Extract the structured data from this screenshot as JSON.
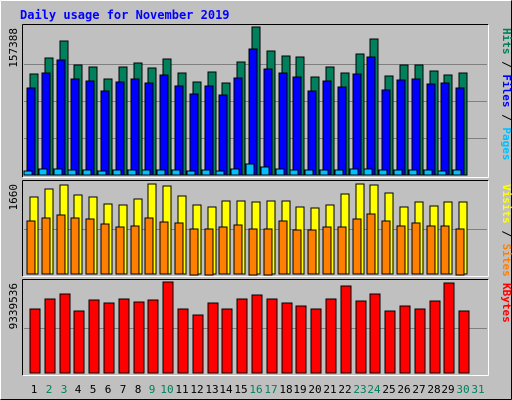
{
  "chart_data": {
    "type": "bar",
    "title": "Daily usage for November 2019",
    "days": [
      "1",
      "2",
      "3",
      "4",
      "5",
      "6",
      "7",
      "8",
      "9",
      "10",
      "11",
      "12",
      "13",
      "14",
      "15",
      "16",
      "17",
      "18",
      "19",
      "20",
      "21",
      "22",
      "23",
      "24",
      "25",
      "26",
      "27",
      "28",
      "29",
      "30",
      "31"
    ],
    "weekend_days": [
      "2",
      "3",
      "9",
      "10",
      "16",
      "17",
      "23",
      "24",
      "30",
      "31"
    ],
    "colors": {
      "background": "#c0c0c0",
      "title": "#0000ff",
      "hits": "#00805c",
      "files": "#0000ff",
      "pages": "#00c0ff",
      "visits": "#ffff00",
      "sites": "#ff8000",
      "kbytes": "#ff0000",
      "weekday_label": "#000000",
      "weekend_label": "#00805c"
    },
    "panels": [
      {
        "id": "hits",
        "max_label": "157388",
        "ymax": 157388,
        "legend": [
          {
            "text": "Hits",
            "color": "#00805c"
          },
          {
            "text": " / ",
            "color": "#000000"
          },
          {
            "text": "Files",
            "color": "#0000ff"
          },
          {
            "text": " / ",
            "color": "#000000"
          },
          {
            "text": "Pages",
            "color": "#00c0ff"
          }
        ],
        "series": [
          {
            "name": "Hits",
            "color": "#00805c",
            "values": [
              107000,
              124000,
              142000,
              117000,
              115000,
              102000,
              115000,
              119000,
              114000,
              123000,
              109000,
              99000,
              110000,
              98000,
              120000,
              157388,
              132000,
              127000,
              125000,
              104000,
              115000,
              108000,
              129000,
              145000,
              105000,
              117000,
              117000,
              111000,
              106000,
              108000
            ]
          },
          {
            "name": "Files",
            "color": "#0000ff",
            "values": [
              92000,
              108000,
              122000,
              102000,
              100000,
              89000,
              99000,
              102000,
              98000,
              106000,
              95000,
              86000,
              95000,
              85000,
              103000,
              134000,
              113000,
              108000,
              104000,
              89000,
              100000,
              94000,
              107000,
              125000,
              90000,
              101000,
              102000,
              97000,
              98000,
              92000
            ]
          },
          {
            "name": "Pages",
            "color": "#00c0ff",
            "values": [
              4500,
              6000,
              6500,
              5000,
              5200,
              4500,
              5000,
              5600,
              4800,
              5500,
              5000,
              4300,
              5000,
              4200,
              6000,
              12000,
              8500,
              6000,
              5800,
              5000,
              5200,
              5000,
              6000,
              6500,
              5000,
              5500,
              5200,
              5000,
              4500,
              5000
            ]
          }
        ]
      },
      {
        "id": "visits",
        "max_label": "1660",
        "ymax": 1660,
        "legend": [
          {
            "text": "Visits",
            "color": "#ffff00"
          },
          {
            "text": " / ",
            "color": "#000000"
          },
          {
            "text": "Sites",
            "color": "#ff8000"
          }
        ],
        "series": [
          {
            "name": "Visits",
            "color": "#ffff00",
            "values": [
              1400,
              1550,
              1620,
              1450,
              1400,
              1280,
              1250,
              1370,
              1640,
              1600,
              1430,
              1250,
              1230,
              1330,
              1330,
              1320,
              1340,
              1340,
              1230,
              1210,
              1260,
              1460,
              1640,
              1630,
              1480,
              1220,
              1320,
              1240,
              1310,
              1310
            ]
          },
          {
            "name": "Sites",
            "color": "#ff8000",
            "values": [
              960,
              1030,
              1080,
              1020,
              1010,
              920,
              860,
              880,
              1020,
              950,
              930,
              830,
              830,
              860,
              900,
              830,
              830,
              960,
              800,
              800,
              850,
              860,
              1000,
              1100,
              960,
              880,
              930,
              870,
              870,
              830
            ]
          }
        ]
      },
      {
        "id": "kbytes",
        "max_label": "9339536",
        "ymax": 9339536,
        "legend": [
          {
            "text": "KBytes",
            "color": "#ff0000"
          }
        ],
        "series": [
          {
            "name": "KBytes",
            "color": "#ff0000",
            "values": [
              6550000,
              7620000,
              8140000,
              6350000,
              7450000,
              7160000,
              7620000,
              7260000,
              7450000,
              9339536,
              6520000,
              5930000,
              7160000,
              6520000,
              7620000,
              8000000,
              7620000,
              7160000,
              6840000,
              6520000,
              7620000,
              8940000,
              7350000,
              8140000,
              6350000,
              6900000,
              6520000,
              7350000,
              9200000,
              6320000
            ]
          }
        ]
      }
    ]
  }
}
